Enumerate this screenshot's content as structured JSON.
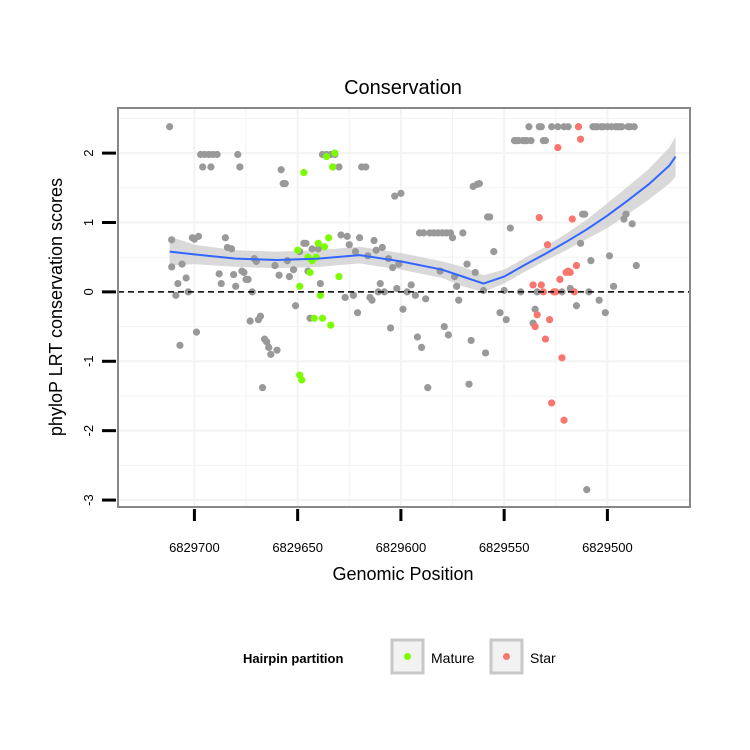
{
  "chart_data": {
    "type": "scatter",
    "title": "Conservation",
    "xlabel": "Genomic Position",
    "ylabel": "phyloP LRT conservation scores",
    "xlim": [
      6829737,
      6829460
    ],
    "ylim": [
      -3.1,
      2.65
    ],
    "x_reversed": true,
    "x_ticks": [
      6829700,
      6829650,
      6829600,
      6829550,
      6829500
    ],
    "x_tick_labels": [
      "6829700",
      "6829650",
      "6829600",
      "6829550",
      "6829500"
    ],
    "y_ticks": [
      -3,
      -2,
      -1,
      0,
      1,
      2
    ],
    "y_tick_labels": [
      "-3",
      "-2",
      "-1",
      "0",
      "1",
      "2"
    ],
    "reference_line": {
      "y": 0,
      "style": "dashed"
    },
    "colors": {
      "other": "#999999",
      "Mature": "#7cfc00",
      "Star": "#f8766d",
      "smooth": "#3366ff",
      "ribbon": "#cccccc",
      "grid": "#f3f3f3",
      "border": "#888888"
    },
    "legend": {
      "title": "Hairpin partition",
      "position": "bottom",
      "entries": [
        {
          "label": "Mature",
          "color": "#7cfc00"
        },
        {
          "label": "Star",
          "color": "#f8766d"
        }
      ]
    },
    "smooth": {
      "x": [
        6829712,
        6829700,
        6829680,
        6829660,
        6829640,
        6829620,
        6829600,
        6829580,
        6829570,
        6829560,
        6829550,
        6829540,
        6829530,
        6829520,
        6829510,
        6829500,
        6829490,
        6829480,
        6829470,
        6829467
      ],
      "y": [
        0.58,
        0.54,
        0.48,
        0.46,
        0.48,
        0.53,
        0.44,
        0.32,
        0.22,
        0.12,
        0.22,
        0.39,
        0.55,
        0.72,
        0.9,
        1.1,
        1.32,
        1.55,
        1.82,
        1.95
      ],
      "lower": [
        0.38,
        0.4,
        0.36,
        0.34,
        0.36,
        0.41,
        0.32,
        0.2,
        0.08,
        0.0,
        0.12,
        0.29,
        0.45,
        0.6,
        0.76,
        0.92,
        1.12,
        1.33,
        1.56,
        1.66
      ],
      "upper": [
        0.8,
        0.68,
        0.6,
        0.58,
        0.6,
        0.65,
        0.56,
        0.44,
        0.36,
        0.24,
        0.32,
        0.49,
        0.65,
        0.84,
        1.04,
        1.28,
        1.52,
        1.77,
        2.08,
        2.24
      ]
    },
    "series": [
      {
        "name": "Other",
        "points": [
          [
            6829712,
            2.38
          ],
          [
            6829711,
            0.75
          ],
          [
            6829711,
            0.36
          ],
          [
            6829709,
            -0.05
          ],
          [
            6829708,
            0.12
          ],
          [
            6829707,
            -0.77
          ],
          [
            6829706,
            0.4
          ],
          [
            6829704,
            0.2
          ],
          [
            6829703,
            0.0
          ],
          [
            6829701,
            0.78
          ],
          [
            6829700,
            0.76
          ],
          [
            6829699,
            -0.58
          ],
          [
            6829698,
            0.8
          ],
          [
            6829697,
            1.98
          ],
          [
            6829696,
            1.8
          ],
          [
            6829695,
            1.98
          ],
          [
            6829693,
            1.98
          ],
          [
            6829692,
            1.8
          ],
          [
            6829691,
            1.98
          ],
          [
            6829689,
            1.98
          ],
          [
            6829688,
            0.26
          ],
          [
            6829687,
            0.12
          ],
          [
            6829685,
            0.78
          ],
          [
            6829684,
            0.64
          ],
          [
            6829682,
            0.62
          ],
          [
            6829681,
            0.25
          ],
          [
            6829680,
            0.08
          ],
          [
            6829679,
            1.98
          ],
          [
            6829678,
            1.8
          ],
          [
            6829677,
            0.3
          ],
          [
            6829676,
            0.28
          ],
          [
            6829675,
            0.18
          ],
          [
            6829674,
            0.18
          ],
          [
            6829673,
            -0.42
          ],
          [
            6829672,
            0.0
          ],
          [
            6829671,
            0.48
          ],
          [
            6829670,
            0.44
          ],
          [
            6829669,
            -0.4
          ],
          [
            6829668,
            -0.35
          ],
          [
            6829667,
            -1.38
          ],
          [
            6829666,
            -0.68
          ],
          [
            6829665,
            -0.72
          ],
          [
            6829664,
            -0.8
          ],
          [
            6829663,
            -0.9
          ],
          [
            6829661,
            0.38
          ],
          [
            6829660,
            -0.84
          ],
          [
            6829659,
            0.24
          ],
          [
            6829658,
            1.76
          ],
          [
            6829657,
            1.56
          ],
          [
            6829656,
            1.56
          ],
          [
            6829655,
            0.45
          ],
          [
            6829654,
            0.22
          ],
          [
            6829652,
            0.32
          ],
          [
            6829651,
            -0.2
          ],
          [
            6829649,
            0.58
          ],
          [
            6829647,
            0.7
          ],
          [
            6829646,
            0.7
          ],
          [
            6829645,
            0.3
          ],
          [
            6829644,
            -0.38
          ],
          [
            6829643,
            0.62
          ],
          [
            6829640,
            0.62
          ],
          [
            6829639,
            0.12
          ],
          [
            6829638,
            1.98
          ],
          [
            6829636,
            1.98
          ],
          [
            6829634,
            1.98
          ],
          [
            6829633,
            1.8
          ],
          [
            6829632,
            1.98
          ],
          [
            6829630,
            1.8
          ],
          [
            6829629,
            0.82
          ],
          [
            6829627,
            -0.08
          ],
          [
            6829626,
            0.8
          ],
          [
            6829625,
            0.68
          ],
          [
            6829623,
            -0.05
          ],
          [
            6829622,
            0.58
          ],
          [
            6829621,
            -0.3
          ],
          [
            6829620,
            0.78
          ],
          [
            6829619,
            1.8
          ],
          [
            6829617,
            1.8
          ],
          [
            6829616,
            0.52
          ],
          [
            6829615,
            -0.08
          ],
          [
            6829614,
            -0.12
          ],
          [
            6829613,
            0.74
          ],
          [
            6829612,
            0.6
          ],
          [
            6829611,
            0.0
          ],
          [
            6829610,
            0.12
          ],
          [
            6829609,
            0.64
          ],
          [
            6829608,
            0.0
          ],
          [
            6829606,
            0.48
          ],
          [
            6829605,
            -0.52
          ],
          [
            6829604,
            0.35
          ],
          [
            6829603,
            1.38
          ],
          [
            6829602,
            0.05
          ],
          [
            6829601,
            0.4
          ],
          [
            6829600,
            1.42
          ],
          [
            6829599,
            -0.25
          ],
          [
            6829597,
            0.0
          ],
          [
            6829595,
            0.1
          ],
          [
            6829593,
            -0.05
          ],
          [
            6829592,
            -0.65
          ],
          [
            6829591,
            0.85
          ],
          [
            6829590,
            -0.8
          ],
          [
            6829589,
            0.85
          ],
          [
            6829588,
            -0.1
          ],
          [
            6829587,
            -1.38
          ],
          [
            6829586,
            0.85
          ],
          [
            6829584,
            0.85
          ],
          [
            6829582,
            0.85
          ],
          [
            6829581,
            0.3
          ],
          [
            6829580,
            0.85
          ],
          [
            6829579,
            -0.5
          ],
          [
            6829578,
            0.85
          ],
          [
            6829577,
            -0.62
          ],
          [
            6829576,
            0.85
          ],
          [
            6829575,
            0.78
          ],
          [
            6829574,
            0.22
          ],
          [
            6829573,
            0.08
          ],
          [
            6829572,
            -0.12
          ],
          [
            6829570,
            0.85
          ],
          [
            6829568,
            0.4
          ],
          [
            6829567,
            -1.33
          ],
          [
            6829566,
            -0.7
          ],
          [
            6829565,
            1.52
          ],
          [
            6829564,
            0.28
          ],
          [
            6829563,
            1.55
          ],
          [
            6829562,
            1.56
          ],
          [
            6829560,
            0.02
          ],
          [
            6829559,
            -0.88
          ],
          [
            6829558,
            1.08
          ],
          [
            6829557,
            1.08
          ],
          [
            6829555,
            0.58
          ],
          [
            6829552,
            -0.3
          ],
          [
            6829550,
            0.02
          ],
          [
            6829549,
            -0.4
          ],
          [
            6829547,
            0.92
          ],
          [
            6829545,
            2.18
          ],
          [
            6829544,
            2.18
          ],
          [
            6829543,
            2.18
          ],
          [
            6829542,
            0.0
          ],
          [
            6829541,
            2.18
          ],
          [
            6829540,
            2.18
          ],
          [
            6829539,
            2.18
          ],
          [
            6829538,
            2.38
          ],
          [
            6829537,
            2.18
          ],
          [
            6829536,
            -0.45
          ],
          [
            6829535,
            -0.25
          ],
          [
            6829534,
            0.0
          ],
          [
            6829533,
            2.38
          ],
          [
            6829532,
            2.38
          ],
          [
            6829531,
            2.18
          ],
          [
            6829530,
            2.18
          ],
          [
            6829527,
            2.38
          ],
          [
            6829524,
            2.38
          ],
          [
            6829522,
            0.0
          ],
          [
            6829521,
            2.38
          ],
          [
            6829519,
            2.38
          ],
          [
            6829518,
            0.05
          ],
          [
            6829515,
            -0.2
          ],
          [
            6829514,
            2.38
          ],
          [
            6829513,
            0.7
          ],
          [
            6829512,
            1.12
          ],
          [
            6829511,
            1.12
          ],
          [
            6829510,
            -2.85
          ],
          [
            6829509,
            0.0
          ],
          [
            6829508,
            0.45
          ],
          [
            6829507,
            2.38
          ],
          [
            6829506,
            2.38
          ],
          [
            6829505,
            2.38
          ],
          [
            6829504,
            -0.12
          ],
          [
            6829503,
            2.38
          ],
          [
            6829502,
            2.38
          ],
          [
            6829501,
            -0.3
          ],
          [
            6829500,
            2.38
          ],
          [
            6829499,
            0.52
          ],
          [
            6829498,
            2.38
          ],
          [
            6829497,
            0.08
          ],
          [
            6829496,
            2.38
          ],
          [
            6829495,
            2.38
          ],
          [
            6829494,
            2.38
          ],
          [
            6829493,
            2.38
          ],
          [
            6829492,
            1.05
          ],
          [
            6829491,
            1.12
          ],
          [
            6829490,
            2.38
          ],
          [
            6829489,
            2.38
          ],
          [
            6829488,
            0.98
          ],
          [
            6829487,
            2.38
          ],
          [
            6829486,
            0.38
          ]
        ]
      },
      {
        "name": "Mature",
        "points": [
          [
            6829650,
            0.6
          ],
          [
            6829649,
            0.08
          ],
          [
            6829649,
            -1.2
          ],
          [
            6829648,
            -1.27
          ],
          [
            6829647,
            1.72
          ],
          [
            6829645,
            0.5
          ],
          [
            6829644,
            0.28
          ],
          [
            6829643,
            0.45
          ],
          [
            6829642,
            -0.38
          ],
          [
            6829641,
            0.5
          ],
          [
            6829640,
            0.7
          ],
          [
            6829639,
            -0.05
          ],
          [
            6829638,
            -0.38
          ],
          [
            6829637,
            0.65
          ],
          [
            6829636,
            1.95
          ],
          [
            6829635,
            0.78
          ],
          [
            6829634,
            -0.48
          ],
          [
            6829633,
            1.8
          ],
          [
            6829632,
            2.0
          ],
          [
            6829630,
            0.22
          ]
        ]
      },
      {
        "name": "Star",
        "points": [
          [
            6829536,
            0.1
          ],
          [
            6829535,
            -0.5
          ],
          [
            6829534,
            -0.33
          ],
          [
            6829533,
            1.07
          ],
          [
            6829532,
            0.1
          ],
          [
            6829531,
            0.0
          ],
          [
            6829530,
            -0.68
          ],
          [
            6829529,
            0.68
          ],
          [
            6829528,
            -0.4
          ],
          [
            6829527,
            -1.6
          ],
          [
            6829526,
            0.0
          ],
          [
            6829525,
            0.0
          ],
          [
            6829524,
            2.08
          ],
          [
            6829523,
            0.18
          ],
          [
            6829522,
            -0.95
          ],
          [
            6829521,
            -1.85
          ],
          [
            6829520,
            0.28
          ],
          [
            6829519,
            0.3
          ],
          [
            6829518,
            0.28
          ],
          [
            6829517,
            1.05
          ],
          [
            6829516,
            0.0
          ],
          [
            6829515,
            0.38
          ],
          [
            6829514,
            2.38
          ],
          [
            6829513,
            2.2
          ]
        ]
      }
    ]
  }
}
